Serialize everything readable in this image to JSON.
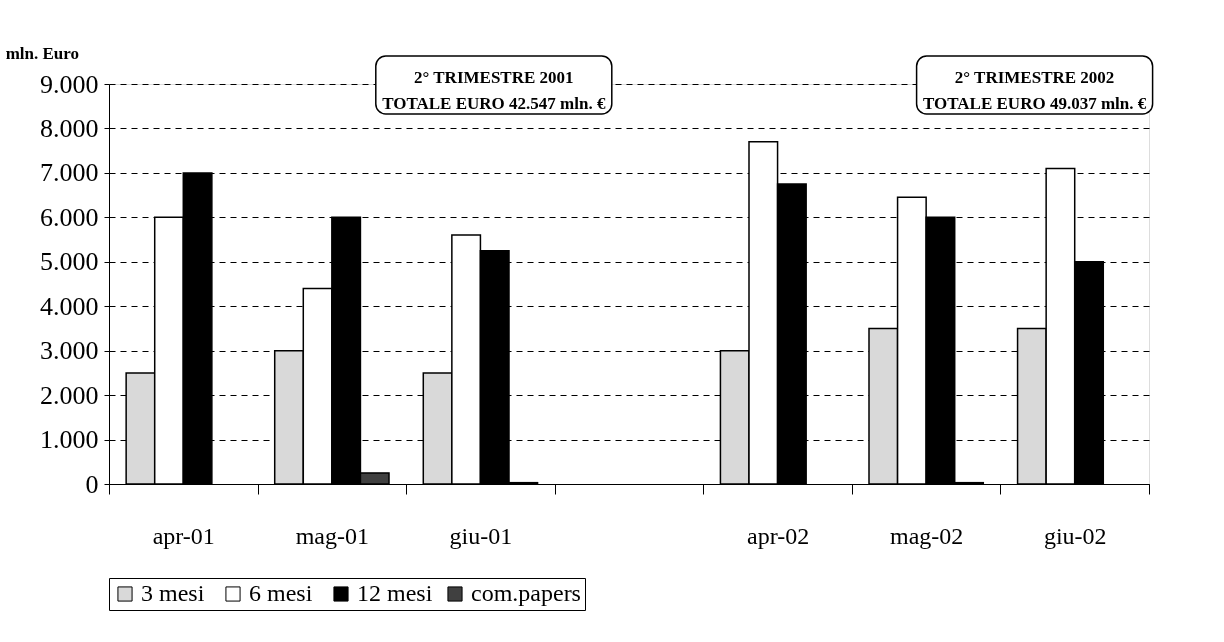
{
  "chart_data": {
    "type": "bar",
    "categories": [
      "apr-01",
      "mag-01",
      "giu-01",
      null,
      "apr-02",
      "mag-02",
      "giu-02"
    ],
    "series": [
      {
        "name": "3  mesi",
        "color": "#d9d9d9",
        "values": [
          2500,
          3000,
          2500,
          null,
          3000,
          3500,
          3500
        ]
      },
      {
        "name": "6  mesi",
        "color": "#ffffff",
        "values": [
          6000,
          4400,
          5600,
          null,
          7700,
          6450,
          7100
        ]
      },
      {
        "name": "12 mesi",
        "color": "#000000",
        "values": [
          7000,
          6000,
          5250,
          null,
          6750,
          6000,
          5000
        ]
      },
      {
        "name": "com.papers",
        "color": "#404040",
        "values": [
          0,
          250,
          30,
          null,
          0,
          30,
          0
        ]
      }
    ],
    "ylabel": "mln. Euro",
    "ylim": [
      0,
      9000
    ],
    "yticks": [
      0,
      {
        "value": 1000,
        "label": "1.000"
      },
      {
        "value": 2000,
        "label": "2.000"
      },
      {
        "value": 3000,
        "label": "3.000"
      },
      {
        "value": 4000,
        "label": "4.000"
      },
      {
        "value": 5000,
        "label": "5.000"
      },
      {
        "value": 6000,
        "label": "6.000"
      },
      {
        "value": 7000,
        "label": "7.000"
      },
      {
        "value": 8000,
        "label": "8.000"
      },
      {
        "value": 9000,
        "label": "9.000"
      }
    ],
    "annotations": [
      "2° TRIMESTRE 2001\nTOTALE EURO 42.547 mln. €",
      "2° TRIMESTRE 2002\nTOTALE EURO 49.037 mln. €"
    ],
    "grid": "y",
    "legend": "bottom"
  }
}
